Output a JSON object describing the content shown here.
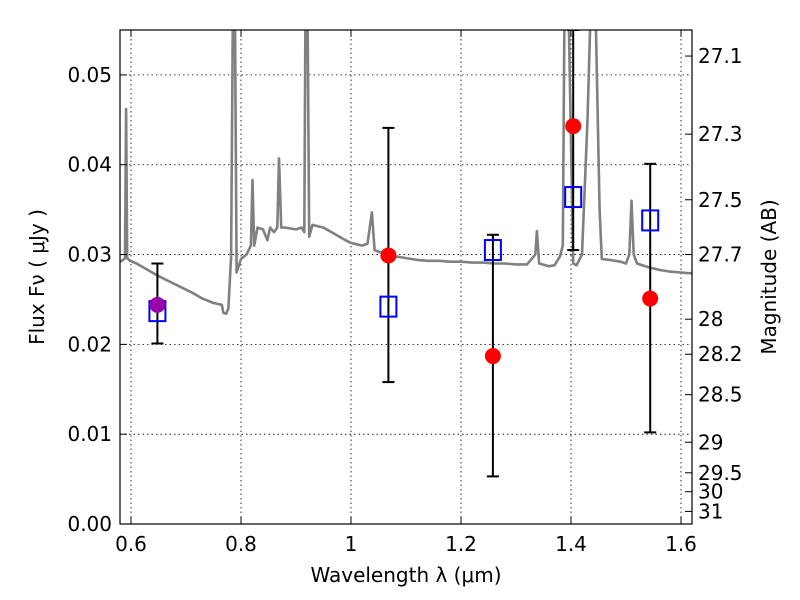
{
  "chart_data": {
    "type": "scatter",
    "xlabel": "Wavelength  λ (μm)",
    "ylabel": "Flux  Fν  ( μJy )",
    "ylabel_right": "Magnitude (AB)",
    "xlim": [
      0.58,
      1.62
    ],
    "ylim": [
      0.0,
      0.055
    ],
    "grid": true,
    "x_ticks": [
      {
        "value": 0.6,
        "label": "0.6"
      },
      {
        "value": 0.8,
        "label": "0.8"
      },
      {
        "value": 1.0,
        "label": "1"
      },
      {
        "value": 1.2,
        "label": "1.2"
      },
      {
        "value": 1.4,
        "label": "1.4"
      },
      {
        "value": 1.6,
        "label": "1.6"
      }
    ],
    "y_ticks": [
      {
        "value": 0.0,
        "label": "0.00"
      },
      {
        "value": 0.01,
        "label": "0.01"
      },
      {
        "value": 0.02,
        "label": "0.02"
      },
      {
        "value": 0.03,
        "label": "0.03"
      },
      {
        "value": 0.04,
        "label": "0.04"
      },
      {
        "value": 0.05,
        "label": "0.05"
      }
    ],
    "mag_ticks": [
      {
        "label": "27.1",
        "flux": 0.0521
      },
      {
        "label": "27.3",
        "flux": 0.0434
      },
      {
        "label": "27.5",
        "flux": 0.0361
      },
      {
        "label": "27.7",
        "flux": 0.03
      },
      {
        "label": "28",
        "flux": 0.0228
      },
      {
        "label": "28.2",
        "flux": 0.0189
      },
      {
        "label": "28.5",
        "flux": 0.0144
      },
      {
        "label": "29",
        "flux": 0.0091
      },
      {
        "label": "29.5",
        "flux": 0.0057
      },
      {
        "label": "30",
        "flux": 0.0036
      },
      {
        "label": "31",
        "flux": 0.0014
      }
    ],
    "series": [
      {
        "type": "line",
        "color": "#808080",
        "points": [
          [
            0.58,
            0.0292
          ],
          [
            0.586,
            0.0294
          ],
          [
            0.589,
            0.0296
          ],
          [
            0.591,
            0.0462
          ],
          [
            0.593,
            0.0296
          ],
          [
            0.598,
            0.0293
          ],
          [
            0.61,
            0.029
          ],
          [
            0.63,
            0.0283
          ],
          [
            0.65,
            0.0276
          ],
          [
            0.67,
            0.027
          ],
          [
            0.69,
            0.0264
          ],
          [
            0.71,
            0.0258
          ],
          [
            0.73,
            0.0251
          ],
          [
            0.75,
            0.0246
          ],
          [
            0.765,
            0.0244
          ],
          [
            0.768,
            0.0235
          ],
          [
            0.773,
            0.0234
          ],
          [
            0.777,
            0.024
          ],
          [
            0.782,
            0.0298
          ],
          [
            0.785,
            0.056
          ],
          [
            0.789,
            0.056
          ],
          [
            0.792,
            0.028
          ],
          [
            0.8,
            0.0295
          ],
          [
            0.81,
            0.03
          ],
          [
            0.818,
            0.031
          ],
          [
            0.821,
            0.0383
          ],
          [
            0.824,
            0.031
          ],
          [
            0.83,
            0.033
          ],
          [
            0.84,
            0.0328
          ],
          [
            0.848,
            0.0316
          ],
          [
            0.853,
            0.033
          ],
          [
            0.86,
            0.0325
          ],
          [
            0.866,
            0.033
          ],
          [
            0.869,
            0.0407
          ],
          [
            0.873,
            0.033
          ],
          [
            0.88,
            0.033
          ],
          [
            0.9,
            0.0328
          ],
          [
            0.91,
            0.033
          ],
          [
            0.915,
            0.0325
          ],
          [
            0.917,
            0.056
          ],
          [
            0.921,
            0.056
          ],
          [
            0.924,
            0.032
          ],
          [
            0.93,
            0.0333
          ],
          [
            0.95,
            0.033
          ],
          [
            0.97,
            0.0323
          ],
          [
            0.99,
            0.0316
          ],
          [
            1.0,
            0.0313
          ],
          [
            1.02,
            0.031
          ],
          [
            1.03,
            0.0312
          ],
          [
            1.038,
            0.0347
          ],
          [
            1.043,
            0.0305
          ],
          [
            1.06,
            0.0301
          ],
          [
            1.08,
            0.0298
          ],
          [
            1.1,
            0.0296
          ],
          [
            1.12,
            0.0294
          ],
          [
            1.14,
            0.0293
          ],
          [
            1.16,
            0.0293
          ],
          [
            1.18,
            0.0292
          ],
          [
            1.2,
            0.0292
          ],
          [
            1.22,
            0.0291
          ],
          [
            1.24,
            0.0291
          ],
          [
            1.26,
            0.029
          ],
          [
            1.28,
            0.029
          ],
          [
            1.3,
            0.0289
          ],
          [
            1.32,
            0.0289
          ],
          [
            1.335,
            0.03
          ],
          [
            1.338,
            0.0326
          ],
          [
            1.342,
            0.029
          ],
          [
            1.36,
            0.0287
          ],
          [
            1.37,
            0.0288
          ],
          [
            1.38,
            0.0298
          ],
          [
            1.385,
            0.031
          ],
          [
            1.388,
            0.056
          ],
          [
            1.396,
            0.056
          ],
          [
            1.404,
            0.029
          ],
          [
            1.41,
            0.0288
          ],
          [
            1.42,
            0.03
          ],
          [
            1.43,
            0.045
          ],
          [
            1.435,
            0.056
          ],
          [
            1.445,
            0.056
          ],
          [
            1.452,
            0.035
          ],
          [
            1.456,
            0.0295
          ],
          [
            1.47,
            0.0294
          ],
          [
            1.49,
            0.0292
          ],
          [
            1.5,
            0.029
          ],
          [
            1.506,
            0.03
          ],
          [
            1.51,
            0.036
          ],
          [
            1.514,
            0.03
          ],
          [
            1.52,
            0.029
          ],
          [
            1.54,
            0.0286
          ],
          [
            1.56,
            0.0283
          ],
          [
            1.58,
            0.0281
          ],
          [
            1.6,
            0.028
          ],
          [
            1.62,
            0.0279
          ]
        ]
      },
      {
        "type": "errorbar",
        "color": "#000000",
        "points": [
          {
            "x": 0.648,
            "low": 0.0201,
            "high": 0.029
          },
          {
            "x": 1.068,
            "low": 0.0158,
            "high": 0.0441
          },
          {
            "x": 1.258,
            "low": 0.0053,
            "high": 0.0322
          },
          {
            "x": 1.404,
            "low": 0.0305,
            "high": 0.056
          },
          {
            "x": 1.544,
            "low": 0.0102,
            "high": 0.0401
          }
        ]
      },
      {
        "type": "scatter",
        "marker": "open-square",
        "color": "#0000ff",
        "points": [
          [
            0.648,
            0.0237
          ],
          [
            1.068,
            0.0242
          ],
          [
            1.258,
            0.0305
          ],
          [
            1.404,
            0.0364
          ],
          [
            1.544,
            0.0338
          ]
        ]
      },
      {
        "type": "scatter",
        "marker": "filled-circle",
        "color": "#ff0000",
        "points": [
          [
            1.068,
            0.0299
          ],
          [
            1.258,
            0.0187
          ],
          [
            1.404,
            0.0443
          ],
          [
            1.544,
            0.0251
          ]
        ]
      },
      {
        "type": "scatter",
        "marker": "filled-circle",
        "color": "#9900aa",
        "points": [
          [
            0.648,
            0.0244
          ]
        ]
      }
    ]
  }
}
